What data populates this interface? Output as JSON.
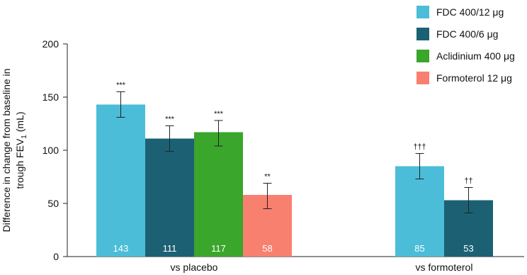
{
  "chart_data": {
    "type": "bar",
    "xlabel": "",
    "ylabel_line1": "Difference in change from baseline in",
    "ylabel_line2_prefix": "trough FEV",
    "ylabel_line2_sub": "1",
    "ylabel_line2_suffix": " (mL)",
    "ylim": [
      0,
      200
    ],
    "yticks": [
      "0",
      "50",
      "100",
      "150",
      "200"
    ],
    "grid": false,
    "legend_position": "top-right",
    "series": [
      {
        "name": "FDC 400/12 μg",
        "color": "#4bbdd8"
      },
      {
        "name": "FDC 400/6 μg",
        "color": "#1b6173"
      },
      {
        "name": "Aclidinium 400 μg",
        "color": "#3aa62b"
      },
      {
        "name": "Formoterol 12 μg",
        "color": "#f8806f"
      }
    ],
    "groups": [
      {
        "category": "vs placebo",
        "bars": [
          {
            "series": 0,
            "value": 143,
            "label": "143",
            "err_low": 131,
            "err_high": 155,
            "sig": "***"
          },
          {
            "series": 1,
            "value": 111,
            "label": "111",
            "err_low": 99,
            "err_high": 123,
            "sig": "***"
          },
          {
            "series": 2,
            "value": 117,
            "label": "117",
            "err_low": 104,
            "err_high": 128,
            "sig": "***"
          },
          {
            "series": 3,
            "value": 58,
            "label": "58",
            "err_low": 45,
            "err_high": 69,
            "sig": "**"
          }
        ]
      },
      {
        "category": "vs formoterol",
        "bars": [
          {
            "series": 0,
            "value": 85,
            "label": "85",
            "err_low": 73,
            "err_high": 97,
            "sig": "†††"
          },
          {
            "series": 1,
            "value": 53,
            "label": "53",
            "err_low": 41,
            "err_high": 65,
            "sig": "††"
          }
        ]
      }
    ]
  }
}
